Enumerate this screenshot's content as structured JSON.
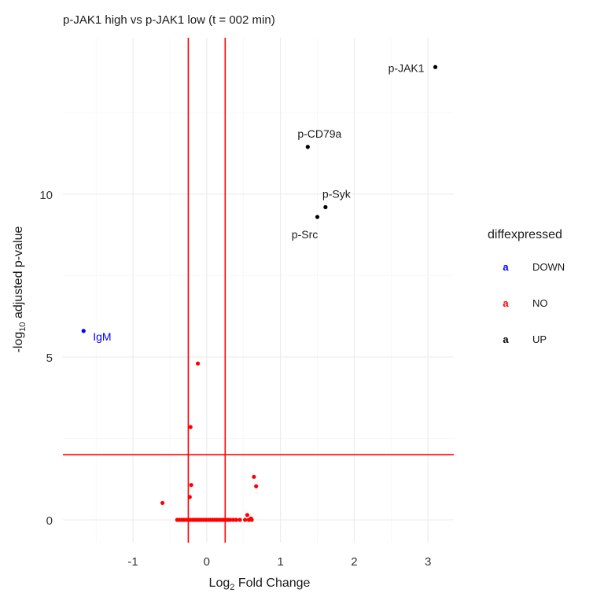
{
  "chart_data": {
    "type": "scatter",
    "title": "p-JAK1 high vs p-JAK1 low (t = 002 min)",
    "xlabel": {
      "prefix": "Log",
      "sub": "2",
      "suffix": " Fold Change"
    },
    "ylabel": {
      "prefix": "-log",
      "sub": "10",
      "suffix": " adjusted p-value"
    },
    "xlim": [
      -1.95,
      3.35
    ],
    "ylim": [
      -0.7,
      14.8
    ],
    "x_ticks": [
      -1,
      0,
      1,
      2,
      3
    ],
    "y_ticks": [
      0,
      5,
      10
    ],
    "grid": true,
    "legend": {
      "title": "diffexpressed",
      "position": "right",
      "key_glyph": "a",
      "entries": [
        {
          "label": "DOWN",
          "color": "#0000ff"
        },
        {
          "label": "NO",
          "color": "#ff0000"
        },
        {
          "label": "UP",
          "color": "#000000"
        }
      ]
    },
    "colors": {
      "DOWN": "#0000ff",
      "NO": "#ff0000",
      "UP": "#000000",
      "threshold": "#ff0000"
    },
    "thresholds": {
      "vlines": [
        -0.25,
        0.25
      ],
      "hline": 2.0
    },
    "series": [
      {
        "name": "UP",
        "points": [
          {
            "x": 3.1,
            "y": 13.9,
            "label": "p-JAK1"
          },
          {
            "x": 1.37,
            "y": 11.45,
            "label": "p-CD79a"
          },
          {
            "x": 1.61,
            "y": 9.6,
            "label": "p-Syk"
          },
          {
            "x": 1.5,
            "y": 9.3,
            "label": "p-Src"
          }
        ]
      },
      {
        "name": "DOWN",
        "points": [
          {
            "x": -1.67,
            "y": 5.8,
            "label": "IgM"
          }
        ]
      },
      {
        "name": "NO",
        "points": [
          {
            "x": -0.12,
            "y": 4.8
          },
          {
            "x": -0.22,
            "y": 2.85
          },
          {
            "x": -0.21,
            "y": 1.07
          },
          {
            "x": -0.23,
            "y": 0.7
          },
          {
            "x": -0.6,
            "y": 0.52
          },
          {
            "x": 0.64,
            "y": 1.32
          },
          {
            "x": 0.67,
            "y": 1.03
          },
          {
            "x": 0.55,
            "y": 0.15
          },
          {
            "x": 0.6,
            "y": 0.04
          },
          {
            "x": -0.4,
            "y": 0.0
          },
          {
            "x": -0.37,
            "y": 0.0
          },
          {
            "x": -0.34,
            "y": 0.0
          },
          {
            "x": -0.31,
            "y": 0.0
          },
          {
            "x": -0.28,
            "y": 0.0
          },
          {
            "x": -0.25,
            "y": 0.0
          },
          {
            "x": -0.22,
            "y": 0.0
          },
          {
            "x": -0.19,
            "y": 0.0
          },
          {
            "x": -0.16,
            "y": 0.0
          },
          {
            "x": -0.13,
            "y": 0.0
          },
          {
            "x": -0.1,
            "y": 0.0
          },
          {
            "x": -0.07,
            "y": 0.0
          },
          {
            "x": -0.04,
            "y": 0.0
          },
          {
            "x": -0.01,
            "y": 0.0
          },
          {
            "x": 0.02,
            "y": 0.0
          },
          {
            "x": 0.05,
            "y": 0.0
          },
          {
            "x": 0.08,
            "y": 0.0
          },
          {
            "x": 0.11,
            "y": 0.0
          },
          {
            "x": 0.14,
            "y": 0.0
          },
          {
            "x": 0.17,
            "y": 0.0
          },
          {
            "x": 0.2,
            "y": 0.0
          },
          {
            "x": 0.23,
            "y": 0.0
          },
          {
            "x": 0.26,
            "y": 0.0
          },
          {
            "x": 0.29,
            "y": 0.0
          },
          {
            "x": 0.32,
            "y": 0.0
          },
          {
            "x": 0.36,
            "y": 0.0
          },
          {
            "x": 0.4,
            "y": 0.0
          },
          {
            "x": 0.45,
            "y": 0.0
          },
          {
            "x": 0.52,
            "y": 0.0
          },
          {
            "x": 0.57,
            "y": 0.0
          },
          {
            "x": 0.61,
            "y": 0.0
          }
        ]
      }
    ]
  }
}
